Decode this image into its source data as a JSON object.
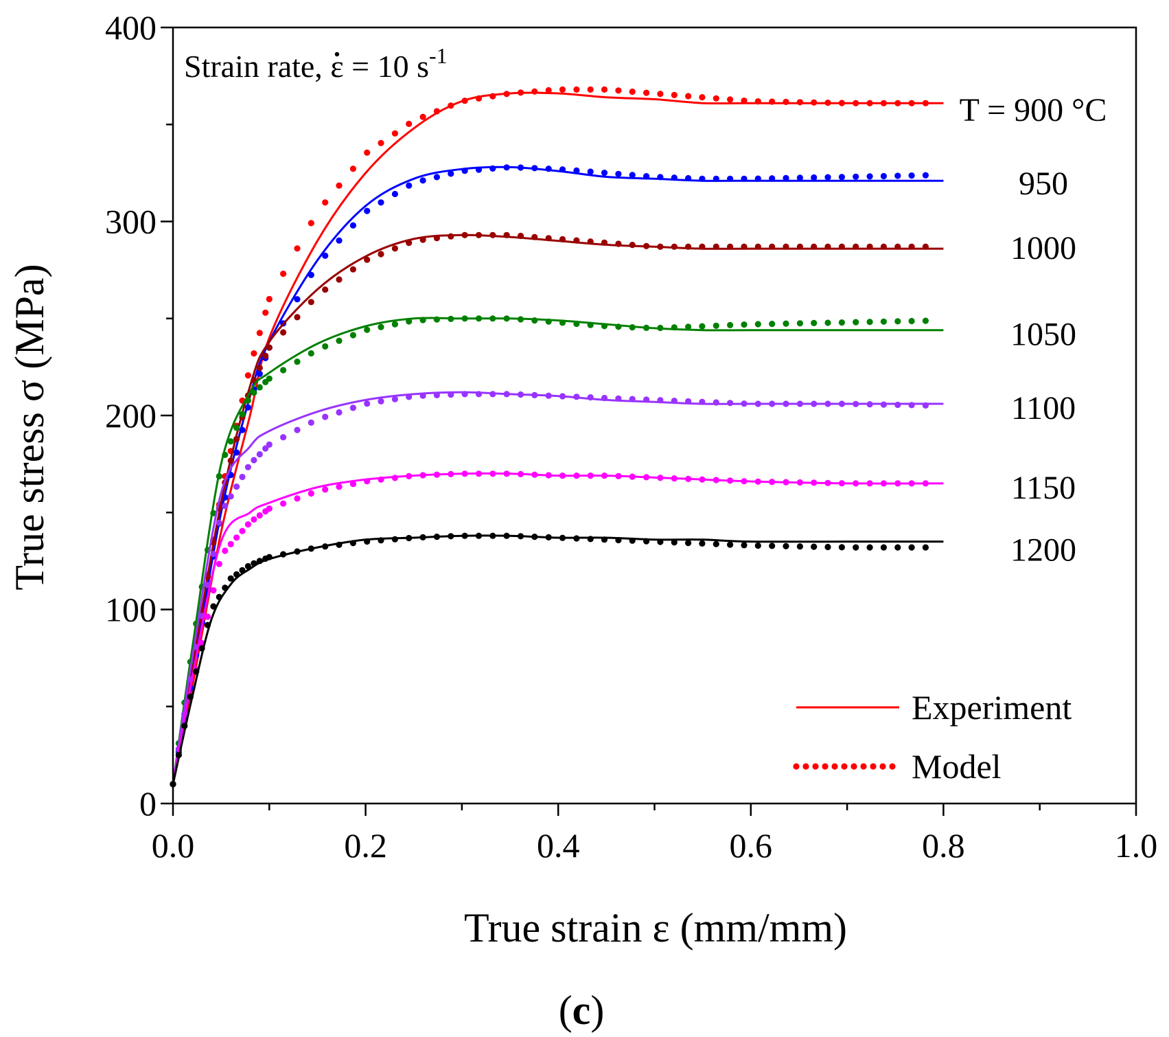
{
  "chart_data": {
    "type": "line",
    "annotation": {
      "prefix": "Strain rate, ",
      "symbol": "ε",
      "suffix": " = 10 s",
      "exponent": "-1"
    },
    "xlabel": "True strain ε (mm/mm)",
    "ylabel": "True stress σ (MPa)",
    "panel_label": {
      "open": "(",
      "letter": "c",
      "close": ")"
    },
    "xlim": [
      0,
      1.0
    ],
    "ylim": [
      0,
      400
    ],
    "x_ticks": [
      "0.0",
      "0.2",
      "0.4",
      "0.6",
      "0.8",
      "1.0"
    ],
    "x_tick_values": [
      0,
      0.2,
      0.4,
      0.6,
      0.8,
      1.0
    ],
    "y_ticks": [
      "0",
      "100",
      "200",
      "300",
      "400"
    ],
    "y_tick_values": [
      0,
      100,
      200,
      300,
      400
    ],
    "legend": {
      "placement": "bottom-right",
      "experiment": "Experiment",
      "model": "Model"
    },
    "series": [
      {
        "name": "T = 900 °C",
        "label": "T = 900 °C",
        "color": "#ff0000",
        "experiment": [
          [
            0,
            10
          ],
          [
            0.02,
            60
          ],
          [
            0.05,
            140
          ],
          [
            0.08,
            200
          ],
          [
            0.1,
            240
          ],
          [
            0.15,
            290
          ],
          [
            0.2,
            325
          ],
          [
            0.25,
            348
          ],
          [
            0.3,
            362
          ],
          [
            0.35,
            366
          ],
          [
            0.4,
            366
          ],
          [
            0.45,
            364
          ],
          [
            0.5,
            363
          ],
          [
            0.55,
            361
          ],
          [
            0.6,
            361
          ],
          [
            0.7,
            361
          ],
          [
            0.8,
            361
          ]
        ],
        "model": [
          [
            0,
            10
          ],
          [
            0.02,
            70
          ],
          [
            0.05,
            160
          ],
          [
            0.08,
            225
          ],
          [
            0.1,
            260
          ],
          [
            0.15,
            305
          ],
          [
            0.2,
            335
          ],
          [
            0.25,
            352
          ],
          [
            0.3,
            362
          ],
          [
            0.35,
            366
          ],
          [
            0.4,
            368
          ],
          [
            0.45,
            368
          ],
          [
            0.5,
            366
          ],
          [
            0.55,
            364
          ],
          [
            0.6,
            362
          ],
          [
            0.7,
            361
          ],
          [
            0.8,
            361
          ]
        ]
      },
      {
        "name": "950",
        "label": "950",
        "color": "#0000ff",
        "experiment": [
          [
            0,
            10
          ],
          [
            0.02,
            65
          ],
          [
            0.05,
            150
          ],
          [
            0.08,
            210
          ],
          [
            0.1,
            238
          ],
          [
            0.15,
            280
          ],
          [
            0.2,
            308
          ],
          [
            0.25,
            322
          ],
          [
            0.3,
            327
          ],
          [
            0.35,
            328
          ],
          [
            0.4,
            326
          ],
          [
            0.45,
            323
          ],
          [
            0.5,
            322
          ],
          [
            0.55,
            321
          ],
          [
            0.6,
            321
          ],
          [
            0.7,
            321
          ],
          [
            0.8,
            321
          ]
        ],
        "model": [
          [
            0,
            10
          ],
          [
            0.02,
            65
          ],
          [
            0.05,
            150
          ],
          [
            0.08,
            208
          ],
          [
            0.1,
            235
          ],
          [
            0.15,
            278
          ],
          [
            0.2,
            305
          ],
          [
            0.25,
            320
          ],
          [
            0.3,
            326
          ],
          [
            0.35,
            328
          ],
          [
            0.4,
            327
          ],
          [
            0.45,
            325
          ],
          [
            0.5,
            323
          ],
          [
            0.55,
            322
          ],
          [
            0.6,
            322
          ],
          [
            0.7,
            323
          ],
          [
            0.8,
            324
          ]
        ]
      },
      {
        "name": "1000",
        "label": "1000",
        "color": "#990000",
        "experiment": [
          [
            0,
            10
          ],
          [
            0.02,
            70
          ],
          [
            0.05,
            155
          ],
          [
            0.08,
            215
          ],
          [
            0.1,
            238
          ],
          [
            0.15,
            265
          ],
          [
            0.2,
            282
          ],
          [
            0.25,
            291
          ],
          [
            0.3,
            293
          ],
          [
            0.35,
            292
          ],
          [
            0.4,
            290
          ],
          [
            0.45,
            288
          ],
          [
            0.5,
            287
          ],
          [
            0.55,
            286
          ],
          [
            0.6,
            286
          ],
          [
            0.7,
            286
          ],
          [
            0.8,
            286
          ]
        ],
        "model": [
          [
            0,
            10
          ],
          [
            0.02,
            70
          ],
          [
            0.05,
            158
          ],
          [
            0.08,
            214
          ],
          [
            0.1,
            235
          ],
          [
            0.15,
            262
          ],
          [
            0.2,
            280
          ],
          [
            0.25,
            290
          ],
          [
            0.3,
            293
          ],
          [
            0.35,
            293
          ],
          [
            0.4,
            291
          ],
          [
            0.45,
            289
          ],
          [
            0.5,
            287
          ],
          [
            0.55,
            287
          ],
          [
            0.6,
            287
          ],
          [
            0.7,
            287
          ],
          [
            0.8,
            287
          ]
        ]
      },
      {
        "name": "1050",
        "label": "1050",
        "color": "#008000",
        "experiment": [
          [
            0,
            10
          ],
          [
            0.02,
            80
          ],
          [
            0.05,
            175
          ],
          [
            0.08,
            212
          ],
          [
            0.1,
            222
          ],
          [
            0.15,
            237
          ],
          [
            0.2,
            246
          ],
          [
            0.25,
            250
          ],
          [
            0.3,
            250
          ],
          [
            0.35,
            250
          ],
          [
            0.4,
            249
          ],
          [
            0.45,
            247
          ],
          [
            0.5,
            245
          ],
          [
            0.55,
            244
          ],
          [
            0.6,
            244
          ],
          [
            0.7,
            244
          ],
          [
            0.8,
            244
          ]
        ],
        "model": [
          [
            0,
            10
          ],
          [
            0.02,
            80
          ],
          [
            0.05,
            175
          ],
          [
            0.08,
            210
          ],
          [
            0.1,
            219
          ],
          [
            0.15,
            234
          ],
          [
            0.2,
            244
          ],
          [
            0.25,
            249
          ],
          [
            0.3,
            250
          ],
          [
            0.35,
            250
          ],
          [
            0.4,
            248
          ],
          [
            0.45,
            246
          ],
          [
            0.5,
            245
          ],
          [
            0.55,
            246
          ],
          [
            0.6,
            247
          ],
          [
            0.7,
            248
          ],
          [
            0.8,
            249
          ]
        ]
      },
      {
        "name": "1100",
        "label": "1100",
        "color": "#9933ff",
        "experiment": [
          [
            0,
            10
          ],
          [
            0.02,
            75
          ],
          [
            0.05,
            160
          ],
          [
            0.08,
            184
          ],
          [
            0.1,
            192
          ],
          [
            0.15,
            202
          ],
          [
            0.2,
            208
          ],
          [
            0.25,
            211
          ],
          [
            0.3,
            212
          ],
          [
            0.35,
            211
          ],
          [
            0.4,
            210
          ],
          [
            0.45,
            208
          ],
          [
            0.5,
            207
          ],
          [
            0.55,
            206
          ],
          [
            0.6,
            206
          ],
          [
            0.7,
            206
          ],
          [
            0.8,
            206
          ]
        ],
        "model": [
          [
            0,
            10
          ],
          [
            0.02,
            70
          ],
          [
            0.05,
            150
          ],
          [
            0.08,
            175
          ],
          [
            0.1,
            185
          ],
          [
            0.15,
            198
          ],
          [
            0.2,
            206
          ],
          [
            0.25,
            210
          ],
          [
            0.3,
            211
          ],
          [
            0.35,
            211
          ],
          [
            0.4,
            210
          ],
          [
            0.45,
            209
          ],
          [
            0.5,
            208
          ],
          [
            0.55,
            207
          ],
          [
            0.6,
            206
          ],
          [
            0.7,
            206
          ],
          [
            0.8,
            205
          ]
        ]
      },
      {
        "name": "1150",
        "label": "1150",
        "color": "#ff00ff",
        "experiment": [
          [
            0,
            10
          ],
          [
            0.02,
            65
          ],
          [
            0.05,
            135
          ],
          [
            0.08,
            150
          ],
          [
            0.1,
            155
          ],
          [
            0.15,
            163
          ],
          [
            0.2,
            167
          ],
          [
            0.25,
            169
          ],
          [
            0.3,
            170
          ],
          [
            0.35,
            170
          ],
          [
            0.4,
            169
          ],
          [
            0.45,
            169
          ],
          [
            0.5,
            168
          ],
          [
            0.55,
            167
          ],
          [
            0.6,
            166
          ],
          [
            0.7,
            165
          ],
          [
            0.8,
            165
          ]
        ],
        "model": [
          [
            0,
            10
          ],
          [
            0.02,
            60
          ],
          [
            0.05,
            128
          ],
          [
            0.08,
            145
          ],
          [
            0.1,
            152
          ],
          [
            0.15,
            161
          ],
          [
            0.2,
            166
          ],
          [
            0.25,
            169
          ],
          [
            0.3,
            170
          ],
          [
            0.35,
            170
          ],
          [
            0.4,
            169
          ],
          [
            0.45,
            169
          ],
          [
            0.5,
            168
          ],
          [
            0.55,
            167
          ],
          [
            0.6,
            166
          ],
          [
            0.7,
            165
          ],
          [
            0.8,
            165
          ]
        ]
      },
      {
        "name": "1200",
        "label": "1200",
        "color": "#000000",
        "experiment": [
          [
            0,
            10
          ],
          [
            0.02,
            55
          ],
          [
            0.04,
            95
          ],
          [
            0.06,
            113
          ],
          [
            0.08,
            121
          ],
          [
            0.1,
            126
          ],
          [
            0.15,
            132
          ],
          [
            0.2,
            136
          ],
          [
            0.25,
            137
          ],
          [
            0.3,
            138
          ],
          [
            0.35,
            138
          ],
          [
            0.4,
            137
          ],
          [
            0.45,
            137
          ],
          [
            0.5,
            136
          ],
          [
            0.55,
            136
          ],
          [
            0.6,
            135
          ],
          [
            0.7,
            135
          ],
          [
            0.8,
            135
          ]
        ],
        "model": [
          [
            0,
            10
          ],
          [
            0.02,
            60
          ],
          [
            0.04,
            100
          ],
          [
            0.06,
            116
          ],
          [
            0.08,
            123
          ],
          [
            0.1,
            127
          ],
          [
            0.15,
            132
          ],
          [
            0.2,
            135
          ],
          [
            0.25,
            137
          ],
          [
            0.3,
            138
          ],
          [
            0.35,
            138
          ],
          [
            0.4,
            137
          ],
          [
            0.45,
            136
          ],
          [
            0.5,
            135
          ],
          [
            0.55,
            134
          ],
          [
            0.6,
            133
          ],
          [
            0.7,
            132
          ],
          [
            0.8,
            132
          ]
        ]
      }
    ]
  }
}
